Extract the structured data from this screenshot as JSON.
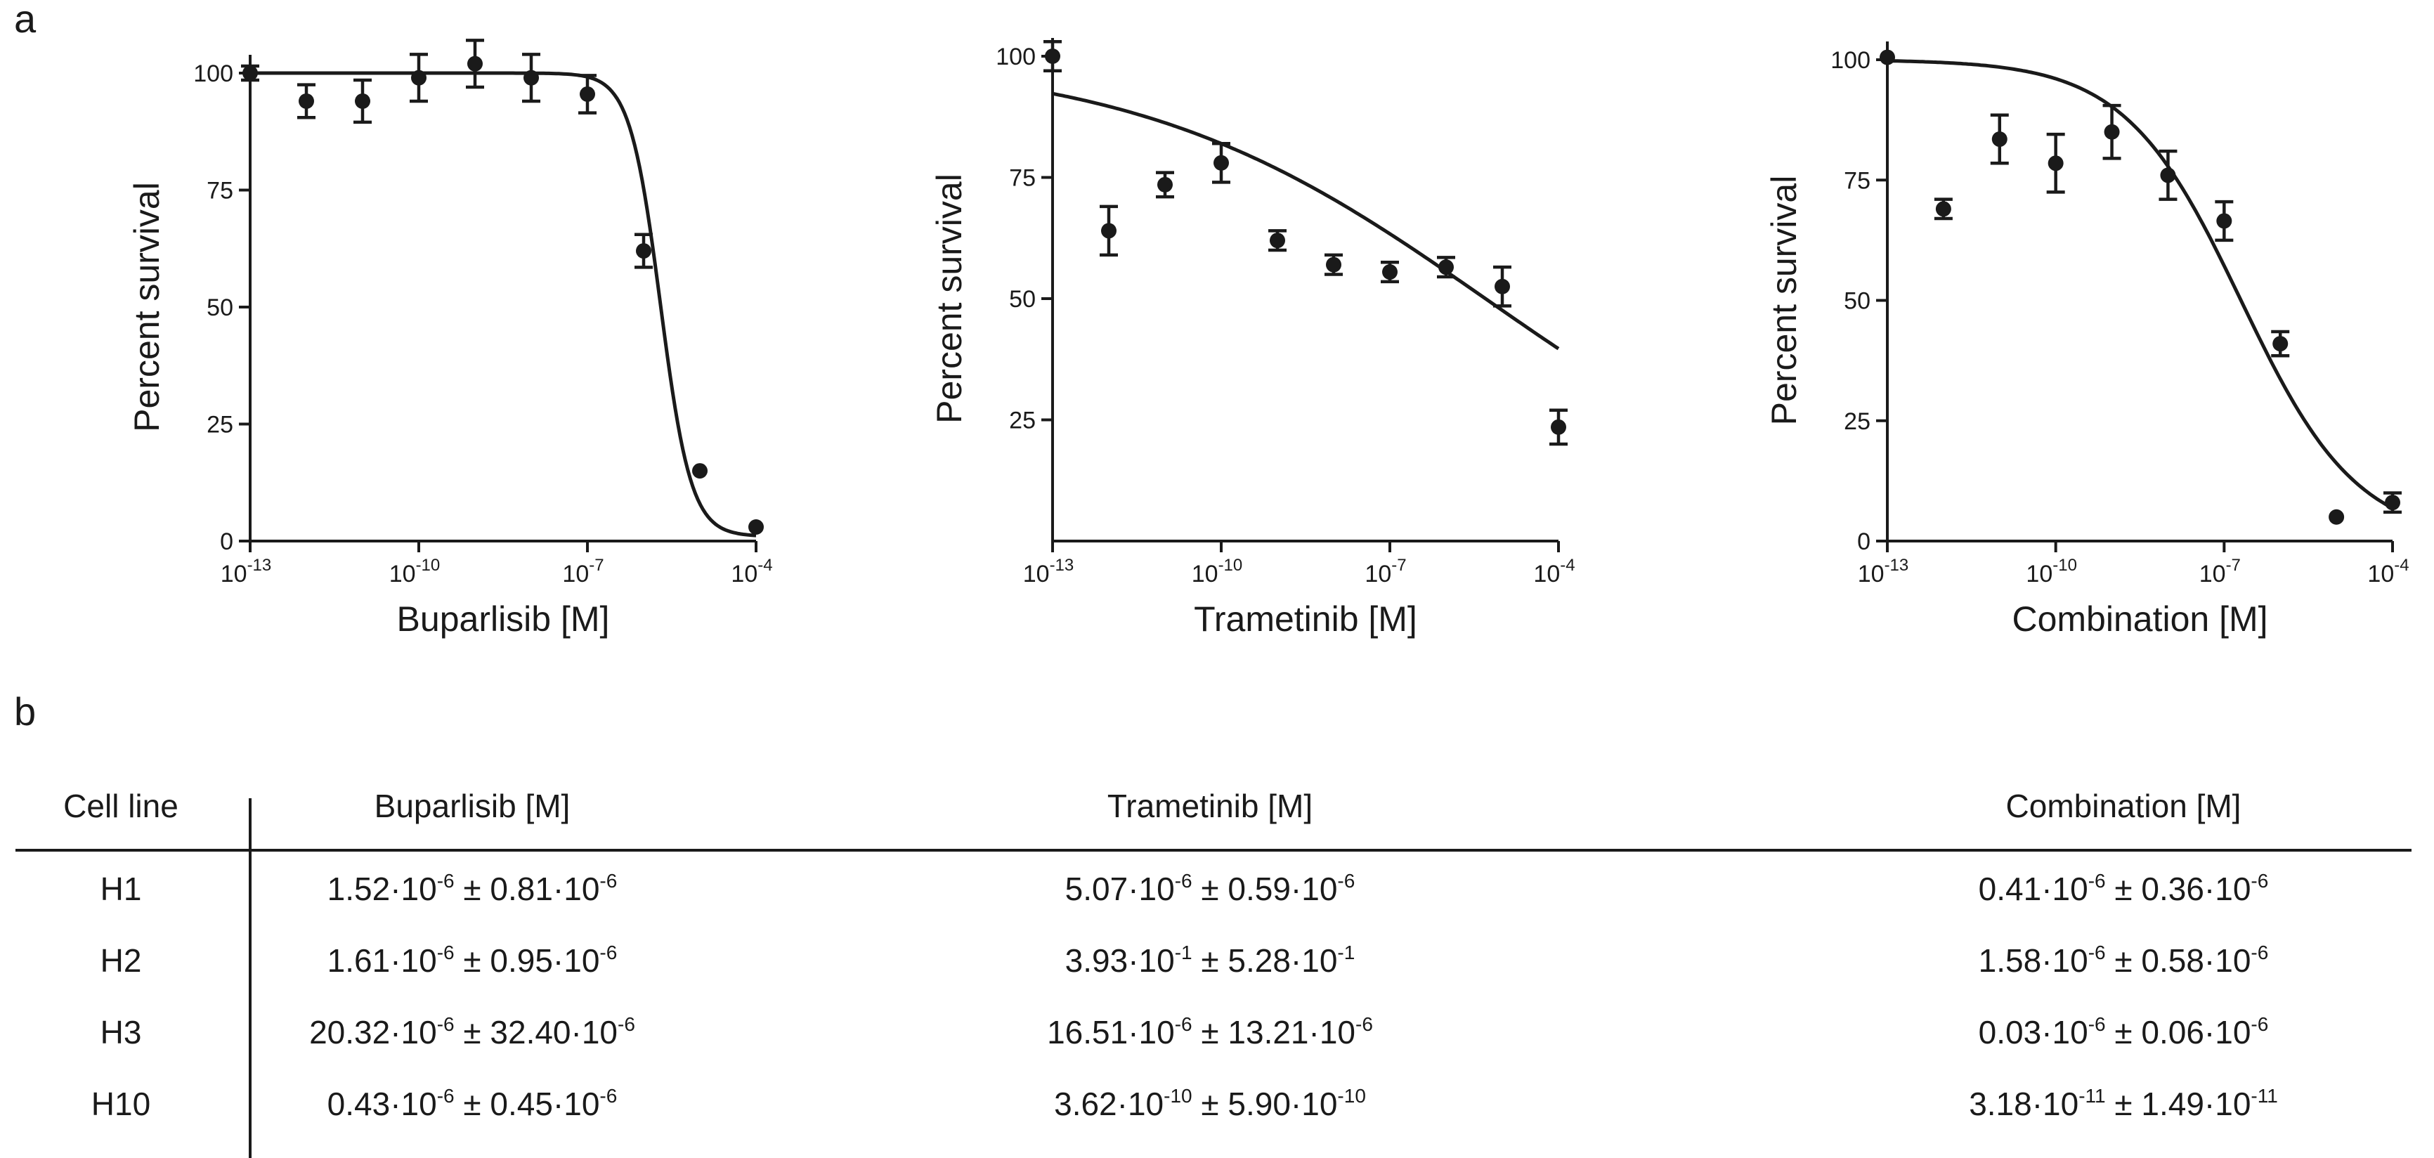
{
  "panels": {
    "a": "a",
    "b": "b"
  },
  "chart_data": [
    {
      "type": "scatter",
      "title": "",
      "xlabel": "Buparlisib [M]",
      "ylabel": "Percent survival",
      "xscale": "log10",
      "xlim": [
        -13,
        -4
      ],
      "ylim": [
        0,
        100
      ],
      "xticks": [
        -13,
        -10,
        -7,
        -4
      ],
      "yticks": [
        0,
        25,
        50,
        75,
        100
      ],
      "points": [
        {
          "x": -13,
          "y": 100,
          "err": 1.5
        },
        {
          "x": -12,
          "y": 94,
          "err": 3.5
        },
        {
          "x": -11,
          "y": 94,
          "err": 4.5
        },
        {
          "x": -10,
          "y": 99,
          "err": 5
        },
        {
          "x": -9,
          "y": 102,
          "err": 5
        },
        {
          "x": -8,
          "y": 99,
          "err": 5
        },
        {
          "x": -7,
          "y": 95.5,
          "err": 4
        },
        {
          "x": -6,
          "y": 62,
          "err": 3.5
        },
        {
          "x": -5,
          "y": 15,
          "err": 0
        },
        {
          "x": -4,
          "y": 3,
          "err": 0
        }
      ],
      "fit": {
        "top": 100,
        "bottom": 1,
        "logIC50": -5.7,
        "hill": 1.6
      }
    },
    {
      "type": "scatter",
      "title": "",
      "xlabel": "Trametinib [M]",
      "ylabel": "Percent survival",
      "xscale": "log10",
      "xlim": [
        -13,
        -4
      ],
      "ylim": [
        0,
        100
      ],
      "xticks": [
        -13,
        -10,
        -7,
        -4
      ],
      "yticks": [
        25,
        50,
        75,
        100
      ],
      "points": [
        {
          "x": -13,
          "y": 100,
          "err": 3
        },
        {
          "x": -12,
          "y": 64,
          "err": 5
        },
        {
          "x": -11,
          "y": 73.5,
          "err": 2.5
        },
        {
          "x": -10,
          "y": 78,
          "err": 4
        },
        {
          "x": -9,
          "y": 62,
          "err": 2
        },
        {
          "x": -8,
          "y": 57,
          "err": 2
        },
        {
          "x": -7,
          "y": 55.5,
          "err": 2
        },
        {
          "x": -6,
          "y": 56.5,
          "err": 2
        },
        {
          "x": -5,
          "y": 52.5,
          "err": 4
        },
        {
          "x": -4,
          "y": 23.5,
          "err": 3.5
        }
      ],
      "fit": {
        "top": 100,
        "bottom": 0,
        "logIC50": -5.3,
        "hill": 0.14
      }
    },
    {
      "type": "scatter",
      "title": "",
      "xlabel": "Combination [M]",
      "ylabel": "Percent survival",
      "xscale": "log10",
      "xlim": [
        -13,
        -4
      ],
      "ylim": [
        0,
        100
      ],
      "xticks": [
        -13,
        -10,
        -7,
        -4
      ],
      "yticks": [
        0,
        25,
        50,
        75,
        100
      ],
      "points": [
        {
          "x": -13,
          "y": 100.5,
          "err": 0
        },
        {
          "x": -12,
          "y": 69,
          "err": 2
        },
        {
          "x": -11,
          "y": 83.5,
          "err": 5
        },
        {
          "x": -10,
          "y": 78.5,
          "err": 6
        },
        {
          "x": -9,
          "y": 85,
          "err": 5.5
        },
        {
          "x": -8,
          "y": 76,
          "err": 5
        },
        {
          "x": -7,
          "y": 66.5,
          "err": 4
        },
        {
          "x": -6,
          "y": 41,
          "err": 2.5
        },
        {
          "x": -5,
          "y": 5,
          "err": 0
        },
        {
          "x": -4,
          "y": 8,
          "err": 2
        }
      ],
      "fit": {
        "top": 100,
        "bottom": 0,
        "logIC50": -6.7,
        "hill": 0.42
      }
    }
  ],
  "table": {
    "headers": [
      "Cell line",
      "Buparlisib [M]",
      "Trametinib [M]",
      "Combination [M]"
    ],
    "rows": [
      {
        "cell": "H1",
        "bup": [
          "1.52·10",
          "-6",
          " ± 0.81·10",
          "-6"
        ],
        "tra": [
          "5.07·10",
          "-6",
          " ± 0.59·10",
          "-6"
        ],
        "com": [
          "0.41·10",
          "-6",
          " ± 0.36·10",
          "-6"
        ]
      },
      {
        "cell": "H2",
        "bup": [
          "1.61·10",
          "-6",
          " ± 0.95·10",
          "-6"
        ],
        "tra": [
          "3.93·10",
          "-1",
          " ± 5.28·10",
          "-1"
        ],
        "com": [
          "1.58·10",
          "-6",
          " ± 0.58·10",
          "-6"
        ]
      },
      {
        "cell": "H3",
        "bup": [
          "20.32·10",
          "-6",
          " ± 32.40·10",
          "-6"
        ],
        "tra": [
          "16.51·10",
          "-6",
          " ± 13.21·10",
          "-6"
        ],
        "com": [
          "0.03·10",
          "-6",
          " ± 0.06·10",
          "-6"
        ]
      },
      {
        "cell": "H10",
        "bup": [
          "0.43·10",
          "-6",
          " ± 0.45·10",
          "-6"
        ],
        "tra": [
          "3.62·10",
          "-10",
          " ± 5.90·10",
          "-10"
        ],
        "com": [
          "3.18·10",
          "-11",
          " ± 1.49·10",
          "-11"
        ]
      }
    ]
  }
}
